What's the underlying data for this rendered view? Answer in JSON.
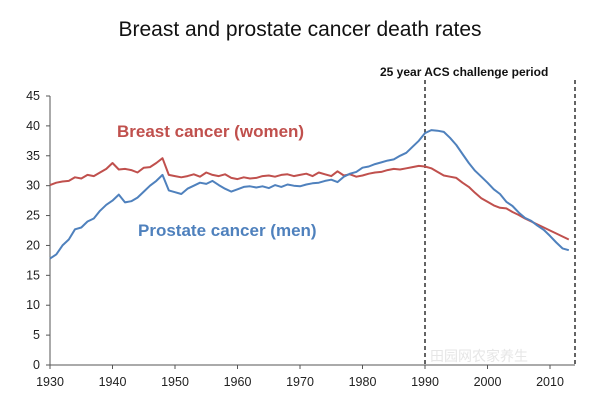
{
  "chart_data": {
    "type": "line",
    "title": "Breast and prostate cancer death rates",
    "xlabel": "",
    "ylabel": "",
    "xlim": [
      1930,
      2014
    ],
    "ylim": [
      0,
      45
    ],
    "x_ticks": [
      "1930",
      "1940",
      "1950",
      "1960",
      "1970",
      "1980",
      "1990",
      "2000",
      "2010"
    ],
    "y_ticks": [
      "0",
      "5",
      "10",
      "15",
      "20",
      "25",
      "30",
      "35",
      "40",
      "45"
    ],
    "grid": false,
    "annotation": {
      "text": "25 year ACS challenge period",
      "x_start": 1990,
      "x_end": 2014
    },
    "series": [
      {
        "name": "Breast cancer (women)",
        "color": "#c0504d",
        "x": [
          1930,
          1931,
          1932,
          1933,
          1934,
          1935,
          1936,
          1937,
          1938,
          1939,
          1940,
          1941,
          1942,
          1943,
          1944,
          1945,
          1946,
          1947,
          1948,
          1949,
          1950,
          1951,
          1952,
          1953,
          1954,
          1955,
          1956,
          1957,
          1958,
          1959,
          1960,
          1961,
          1962,
          1963,
          1964,
          1965,
          1966,
          1967,
          1968,
          1969,
          1970,
          1971,
          1972,
          1973,
          1974,
          1975,
          1976,
          1977,
          1978,
          1979,
          1980,
          1981,
          1982,
          1983,
          1984,
          1985,
          1986,
          1987,
          1988,
          1989,
          1990,
          1991,
          1992,
          1993,
          1994,
          1995,
          1996,
          1997,
          1998,
          1999,
          2000,
          2001,
          2002,
          2003,
          2004,
          2005,
          2006,
          2007,
          2008,
          2009,
          2010,
          2011,
          2012,
          2013
        ],
        "y": [
          30.1,
          30.5,
          30.7,
          30.8,
          31.4,
          31.2,
          31.8,
          31.6,
          32.2,
          32.8,
          33.8,
          32.7,
          32.8,
          32.6,
          32.2,
          33.0,
          33.1,
          33.8,
          34.6,
          31.8,
          31.6,
          31.4,
          31.6,
          31.9,
          31.5,
          32.2,
          31.8,
          31.6,
          31.9,
          31.3,
          31.1,
          31.4,
          31.2,
          31.3,
          31.6,
          31.7,
          31.5,
          31.8,
          31.9,
          31.6,
          31.8,
          32.0,
          31.6,
          32.2,
          31.9,
          31.6,
          32.4,
          31.7,
          31.9,
          31.5,
          31.7,
          32.0,
          32.2,
          32.3,
          32.6,
          32.8,
          32.7,
          32.9,
          33.1,
          33.3,
          33.2,
          32.9,
          32.3,
          31.7,
          31.5,
          31.3,
          30.5,
          29.8,
          28.8,
          27.9,
          27.3,
          26.7,
          26.3,
          26.2,
          25.6,
          25.1,
          24.5,
          24.0,
          23.5,
          23.0,
          22.5,
          22.0,
          21.5,
          21.0
        ]
      },
      {
        "name": "Prostate cancer (men)",
        "color": "#4f81bd",
        "x": [
          1930,
          1931,
          1932,
          1933,
          1934,
          1935,
          1936,
          1937,
          1938,
          1939,
          1940,
          1941,
          1942,
          1943,
          1944,
          1945,
          1946,
          1947,
          1948,
          1949,
          1950,
          1951,
          1952,
          1953,
          1954,
          1955,
          1956,
          1957,
          1958,
          1959,
          1960,
          1961,
          1962,
          1963,
          1964,
          1965,
          1966,
          1967,
          1968,
          1969,
          1970,
          1971,
          1972,
          1973,
          1974,
          1975,
          1976,
          1977,
          1978,
          1979,
          1980,
          1981,
          1982,
          1983,
          1984,
          1985,
          1986,
          1987,
          1988,
          1989,
          1990,
          1991,
          1992,
          1993,
          1994,
          1995,
          1996,
          1997,
          1998,
          1999,
          2000,
          2001,
          2002,
          2003,
          2004,
          2005,
          2006,
          2007,
          2008,
          2009,
          2010,
          2011,
          2012,
          2013
        ],
        "y": [
          17.8,
          18.5,
          20.0,
          21.0,
          22.7,
          23.0,
          24.0,
          24.5,
          25.8,
          26.8,
          27.5,
          28.5,
          27.2,
          27.4,
          28.0,
          29.0,
          30.0,
          30.8,
          31.8,
          29.2,
          28.9,
          28.6,
          29.5,
          30.0,
          30.5,
          30.3,
          30.8,
          30.1,
          29.5,
          29.0,
          29.4,
          29.8,
          29.9,
          29.7,
          29.9,
          29.6,
          30.1,
          29.8,
          30.2,
          30.0,
          29.9,
          30.2,
          30.4,
          30.5,
          30.8,
          31.0,
          30.6,
          31.5,
          32.0,
          32.3,
          33.0,
          33.2,
          33.6,
          33.9,
          34.2,
          34.4,
          35.0,
          35.5,
          36.5,
          37.5,
          38.8,
          39.3,
          39.2,
          39.0,
          38.0,
          36.8,
          35.3,
          33.8,
          32.5,
          31.5,
          30.5,
          29.4,
          28.6,
          27.3,
          26.6,
          25.5,
          24.6,
          24.1,
          23.3,
          22.6,
          21.6,
          20.5,
          19.5,
          19.2
        ]
      }
    ]
  },
  "watermark": "田园网农家养生"
}
